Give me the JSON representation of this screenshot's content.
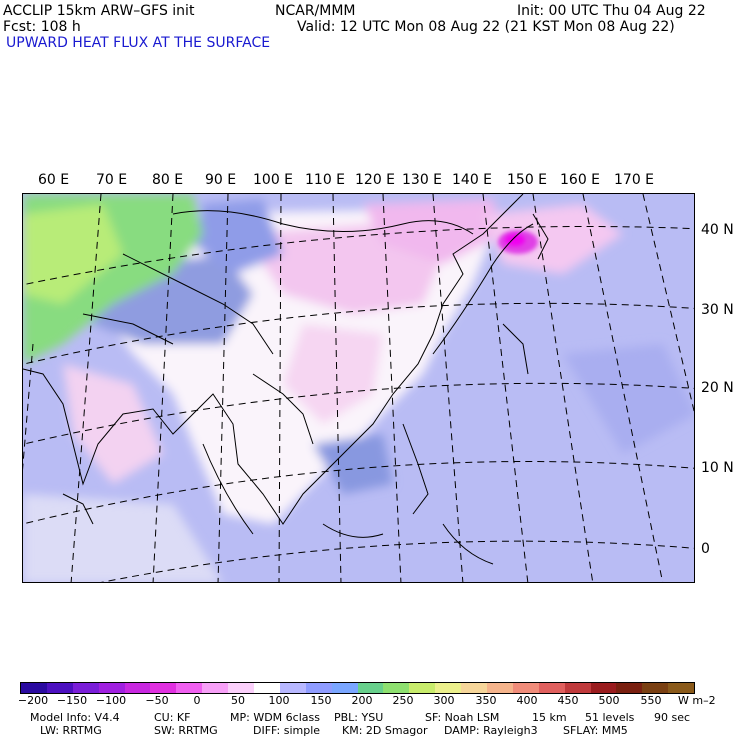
{
  "header": {
    "model": "ACCLIP 15km ARW–GFS init",
    "org": "NCAR/MMM",
    "init": "Init: 00 UTC Thu 04 Aug 22",
    "fcst": "Fcst:  108 h",
    "valid": "Valid: 12 UTC Mon 08 Aug 22 (21 KST Mon 08 Aug 22)",
    "field": "UPWARD HEAT FLUX AT THE SURFACE"
  },
  "map": {
    "lon_labels": [
      "60 E",
      "70 E",
      "80 E",
      "90 E",
      "100 E",
      "110 E",
      "120 E",
      "130 E",
      "140 E",
      "150 E",
      "160 E",
      "170 E"
    ],
    "lat_labels": [
      "40 N",
      "30 N",
      "20 N",
      "10 N",
      "0"
    ]
  },
  "colorbar": {
    "labels": [
      "−200",
      "−150",
      "−100",
      "−50",
      "0",
      "50",
      "100",
      "150",
      "200",
      "250",
      "300",
      "350",
      "400",
      "450",
      "500",
      "550"
    ],
    "units": "W m–2",
    "colors": [
      "#2a0aa0",
      "#4c10c0",
      "#7a1ed8",
      "#a020e0",
      "#c828e0",
      "#e030e0",
      "#f060f0",
      "#f7a0f7",
      "#fbd0fb",
      "#ffffff",
      "#b8b8ff",
      "#8f9cff",
      "#7aa6ff",
      "#68d08c",
      "#8ee070",
      "#c8ec6c",
      "#ecf08c",
      "#f6d69a",
      "#f5b48c",
      "#f08c7a",
      "#e0605e",
      "#c03a3c",
      "#9a1c1e",
      "#7a2010",
      "#7a4012",
      "#8a5a1a"
    ]
  },
  "footer": {
    "line1": [
      "Model Info: V4.4",
      "CU: KF",
      "MP: WDM 6class",
      "PBL: YSU",
      "SF: Noah LSM",
      "15 km",
      "51 levels",
      "90 sec"
    ],
    "line2": [
      "LW: RRTMG",
      "SW: RRTMG",
      "DIFF: simple",
      "KM: 2D Smagor",
      "DAMP: Rayleigh3",
      "SFLAY: MM5"
    ]
  }
}
